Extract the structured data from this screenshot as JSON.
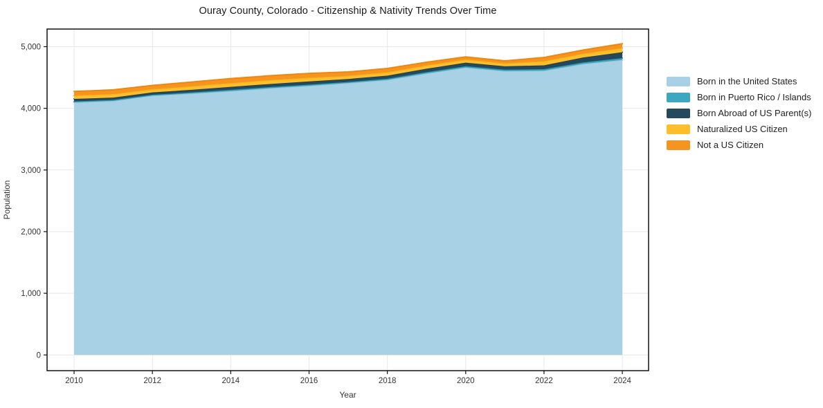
{
  "title": "Ouray County, Colorado - Citizenship & Nativity Trends Over Time",
  "chart_data": {
    "type": "area",
    "stacked": true,
    "title": "Ouray County, Colorado - Citizenship & Nativity Trends Over Time",
    "xlabel": "Year",
    "ylabel": "Population",
    "x": [
      2010,
      2011,
      2012,
      2013,
      2014,
      2015,
      2016,
      2017,
      2018,
      2019,
      2020,
      2021,
      2022,
      2023,
      2024
    ],
    "series": [
      {
        "name": "Born in the United States",
        "color": "#a8d1e5",
        "stroke": "#9cc6dc",
        "values": [
          4095,
          4120,
          4205,
          4240,
          4280,
          4325,
          4365,
          4410,
          4460,
          4565,
          4660,
          4605,
          4610,
          4720,
          4785
        ]
      },
      {
        "name": "Born in Puerto Rico / Islands",
        "color": "#3ca8bf",
        "stroke": "#2f98b1",
        "values": [
          18,
          16,
          15,
          18,
          20,
          20,
          20,
          18,
          20,
          22,
          23,
          22,
          25,
          25,
          30
        ]
      },
      {
        "name": "Born Abroad of US Parent(s)",
        "color": "#25495c",
        "stroke": "#1f3f50",
        "values": [
          40,
          38,
          38,
          42,
          48,
          50,
          52,
          48,
          50,
          55,
          57,
          55,
          62,
          80,
          95
        ]
      },
      {
        "name": "Naturalized US Citizen",
        "color": "#fcbe2a",
        "stroke": "#f5b21a",
        "values": [
          55,
          58,
          52,
          58,
          62,
          62,
          60,
          52,
          55,
          54,
          52,
          48,
          68,
          62,
          68
        ]
      },
      {
        "name": "Not a US Citizen",
        "color": "#f79420",
        "stroke": "#ec8712",
        "values": [
          65,
          68,
          62,
          68,
          72,
          72,
          70,
          62,
          62,
          52,
          42,
          40,
          60,
          58,
          70
        ]
      }
    ],
    "x_ticks": [
      2010,
      2012,
      2014,
      2016,
      2018,
      2020,
      2022,
      2024
    ],
    "y_ticks": [
      0,
      1000,
      2000,
      3000,
      4000,
      5000
    ],
    "y_tick_labels": [
      "0",
      "1,000",
      "2,000",
      "3,000",
      "4,000",
      "5,000"
    ],
    "x_domain": [
      2009.31,
      2024.67
    ],
    "y_domain": [
      -255,
      5286
    ],
    "grid": true,
    "grid_color": "#e7e7e7",
    "spine_color": "#111111",
    "tick_text_color": "#333333",
    "legend_position": "right"
  }
}
